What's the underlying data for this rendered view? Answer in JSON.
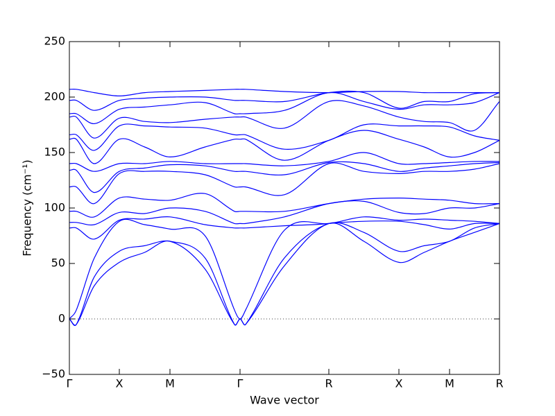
{
  "chart_data": {
    "type": "line",
    "xlabel": "Wave vector",
    "ylabel": "Frequency (cm⁻¹)",
    "x": [
      0,
      0.1,
      0.36,
      0.72,
      1.085,
      1.45,
      1.955,
      2.38,
      2.46,
      2.54,
      3.1,
      3.74,
      4.245,
      4.75,
      5.115,
      5.48,
      5.84,
      6.2
    ],
    "xlim": [
      0,
      6.2
    ],
    "xticks": [
      {
        "value": 0,
        "label": "Γ"
      },
      {
        "value": 0.72,
        "label": "X"
      },
      {
        "value": 1.45,
        "label": "M"
      },
      {
        "value": 2.46,
        "label": "Γ"
      },
      {
        "value": 3.74,
        "label": "R"
      },
      {
        "value": 4.75,
        "label": "X"
      },
      {
        "value": 5.48,
        "label": "M"
      },
      {
        "value": 6.2,
        "label": "R"
      }
    ],
    "ylim": [
      -50,
      250
    ],
    "yticks": [
      {
        "value": -50,
        "label": "−50"
      },
      0,
      50,
      100,
      150,
      200,
      250
    ],
    "hline": 0,
    "series": [
      {
        "color": "#0000ff",
        "values": [
          0,
          -5,
          30,
          51,
          60,
          70,
          45,
          -5,
          0,
          -5,
          48,
          86,
          70,
          51,
          60,
          70,
          78,
          86
        ]
      },
      {
        "color": "#0000ff",
        "values": [
          0,
          -5,
          38,
          61,
          66,
          70,
          55,
          -5,
          0,
          -5,
          55,
          86,
          78,
          61,
          66,
          70,
          82,
          86
        ]
      },
      {
        "color": "#0000ff",
        "values": [
          0,
          8,
          55,
          88,
          85,
          81,
          75,
          8,
          0,
          8,
          80,
          86,
          88,
          88,
          85,
          81,
          86,
          86
        ]
      },
      {
        "color": "#0000ff",
        "values": [
          82,
          82,
          72,
          89,
          90,
          92,
          85,
          82,
          82,
          82,
          84,
          86,
          92,
          89,
          90,
          89,
          88,
          86
        ]
      },
      {
        "color": "#0000ff",
        "values": [
          87,
          87,
          85,
          96,
          95,
          100,
          97,
          86,
          86,
          86,
          92,
          104,
          106,
          96,
          95,
          100,
          100,
          104
        ]
      },
      {
        "color": "#0000ff",
        "values": [
          97,
          97,
          92,
          109,
          108,
          107,
          113,
          97,
          97,
          97,
          97,
          104,
          108,
          109,
          108,
          107,
          104,
          104
        ]
      },
      {
        "color": "#0000ff",
        "values": [
          119,
          119,
          104,
          131,
          133,
          133,
          130,
          119,
          119,
          119,
          112,
          140,
          133,
          131,
          133,
          133,
          135,
          140
        ]
      },
      {
        "color": "#0000ff",
        "values": [
          134,
          134,
          114,
          133,
          136,
          139,
          138,
          133,
          133,
          133,
          130,
          141,
          140,
          133,
          136,
          138,
          140,
          141
        ]
      },
      {
        "color": "#0000ff",
        "values": [
          140,
          140,
          133,
          140,
          140,
          142,
          140,
          140,
          140,
          140,
          138,
          142,
          150,
          140,
          140,
          141,
          142,
          142
        ]
      },
      {
        "color": "#0000ff",
        "values": [
          162,
          162,
          140,
          162,
          155,
          146,
          155,
          162,
          162,
          162,
          143,
          161,
          170,
          162,
          155,
          146,
          150,
          161
        ]
      },
      {
        "color": "#0000ff",
        "values": [
          166,
          166,
          152,
          174,
          174,
          173,
          172,
          166,
          166,
          166,
          153,
          161,
          175,
          174,
          174,
          173,
          165,
          161
        ]
      },
      {
        "color": "#0000ff",
        "values": [
          182,
          182,
          163,
          181,
          178,
          177,
          180,
          182,
          182,
          182,
          172,
          196,
          192,
          182,
          178,
          177,
          170,
          196
        ]
      },
      {
        "color": "#0000ff",
        "values": [
          185,
          185,
          176,
          189,
          191,
          193,
          195,
          185,
          185,
          185,
          188,
          204,
          196,
          189,
          193,
          193,
          195,
          204
        ]
      },
      {
        "color": "#0000ff",
        "values": [
          197,
          197,
          188,
          197,
          199,
          200,
          200,
          197,
          197,
          197,
          196,
          204,
          204,
          190,
          196,
          196,
          203,
          204
        ]
      },
      {
        "color": "#0000ff",
        "values": [
          207,
          207,
          204,
          201,
          204,
          205,
          206,
          207,
          207,
          207,
          205,
          204,
          205,
          205,
          204,
          204,
          204,
          204
        ]
      }
    ]
  }
}
